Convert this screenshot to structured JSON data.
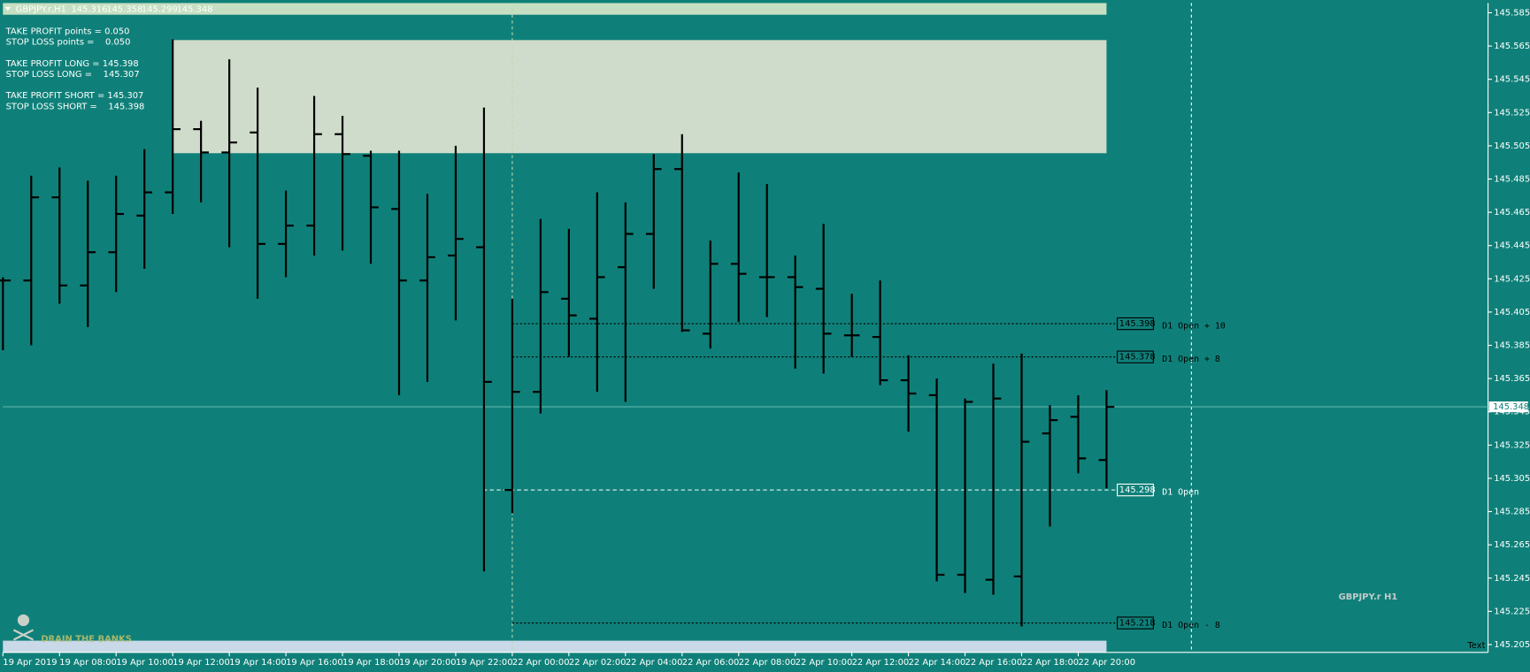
{
  "symbol": "GBPJPY.r,H1",
  "info": [
    "TAKE PROFIT points = 0.050",
    "STOP LOSS points =    0.050",
    "TAKE PROFIT LONG = 145.398",
    "STOP LOSS LONG =    145.307",
    "TAKE PROFIT SHORT = 145.307",
    "STOP LOSS SHORT =    145.398"
  ],
  "watermark": "GBPJPY.r H1",
  "logo": "DRAIN THE BANKS",
  "corner_text": "Text",
  "chart_data": {
    "type": "ohlc",
    "categories": [
      "19 Apr 2019",
      null,
      "19 Apr 08:00",
      null,
      "19 Apr 10:00",
      null,
      "19 Apr 12:00",
      null,
      "19 Apr 14:00",
      null,
      "19 Apr 16:00",
      null,
      "19 Apr 18:00",
      null,
      "19 Apr 20:00",
      null,
      "19 Apr 22:00",
      null,
      "22 Apr 00:00",
      null,
      "22 Apr 02:00",
      null,
      "22 Apr 04:00",
      null,
      "22 Apr 06:00",
      null,
      "22 Apr 08:00",
      null,
      "22 Apr 10:00",
      null,
      "22 Apr 12:00",
      null,
      "22 Apr 14:00",
      null,
      "22 Apr 16:00",
      null,
      "22 Apr 18:00",
      null,
      "22 Apr 20:00",
      null
    ],
    "open": [
      145.424,
      145.424,
      145.474,
      145.421,
      145.441,
      145.463,
      145.477,
      145.515,
      145.501,
      145.513,
      145.446,
      145.457,
      145.512,
      145.499,
      145.467,
      145.424,
      145.439,
      145.444,
      145.298,
      145.357,
      145.413,
      145.401,
      145.432,
      145.452,
      145.491,
      145.392,
      145.434,
      145.426,
      145.426,
      145.419,
      145.391,
      145.39,
      145.364,
      145.355,
      145.247,
      145.244,
      145.246,
      145.332,
      145.342,
      145.316
    ],
    "high": [
      145.426,
      145.487,
      145.492,
      145.484,
      145.487,
      145.503,
      145.569,
      145.52,
      145.557,
      145.54,
      145.478,
      145.535,
      145.523,
      145.502,
      145.502,
      145.476,
      145.505,
      145.528,
      145.413,
      145.461,
      145.455,
      145.477,
      145.471,
      145.5,
      145.512,
      145.448,
      145.489,
      145.482,
      145.439,
      145.458,
      145.416,
      145.424,
      145.379,
      145.365,
      145.353,
      145.374,
      145.38,
      145.349,
      145.355,
      145.358
    ],
    "low": [
      145.382,
      145.385,
      145.41,
      145.396,
      145.417,
      145.431,
      145.464,
      145.471,
      145.444,
      145.413,
      145.426,
      145.439,
      145.442,
      145.434,
      145.355,
      145.363,
      145.4,
      145.249,
      145.284,
      145.344,
      145.378,
      145.357,
      145.351,
      145.419,
      145.393,
      145.383,
      145.399,
      145.402,
      145.371,
      145.368,
      145.378,
      145.361,
      145.333,
      145.243,
      145.236,
      145.235,
      145.216,
      145.276,
      145.308,
      145.299
    ],
    "close": [
      145.424,
      145.474,
      145.421,
      145.441,
      145.464,
      145.477,
      145.515,
      145.501,
      145.507,
      145.446,
      145.457,
      145.512,
      145.5,
      145.468,
      145.424,
      145.438,
      145.449,
      145.363,
      145.357,
      145.417,
      145.403,
      145.426,
      145.452,
      145.491,
      145.394,
      145.434,
      145.428,
      145.426,
      145.42,
      145.392,
      145.391,
      145.364,
      145.356,
      145.247,
      145.351,
      145.353,
      145.327,
      145.34,
      145.317,
      145.348
    ],
    "color": "#000000",
    "current_price": 145.348,
    "levels": [
      {
        "value": 145.398,
        "label": "D1 Open + 10"
      },
      {
        "value": 145.378,
        "label": "D1 Open + 8"
      },
      {
        "value": 145.298,
        "label": "D1 Open"
      },
      {
        "value": 145.218,
        "label": "D1 Open - 8"
      }
    ],
    "ylim": [
      145.205,
      145.585
    ],
    "yticks": [
      145.585,
      145.565,
      145.545,
      145.525,
      145.505,
      145.485,
      145.465,
      145.445,
      145.425,
      145.405,
      145.385,
      145.365,
      145.345,
      145.325,
      145.305,
      145.285,
      145.265,
      145.245,
      145.225,
      145.205
    ]
  }
}
